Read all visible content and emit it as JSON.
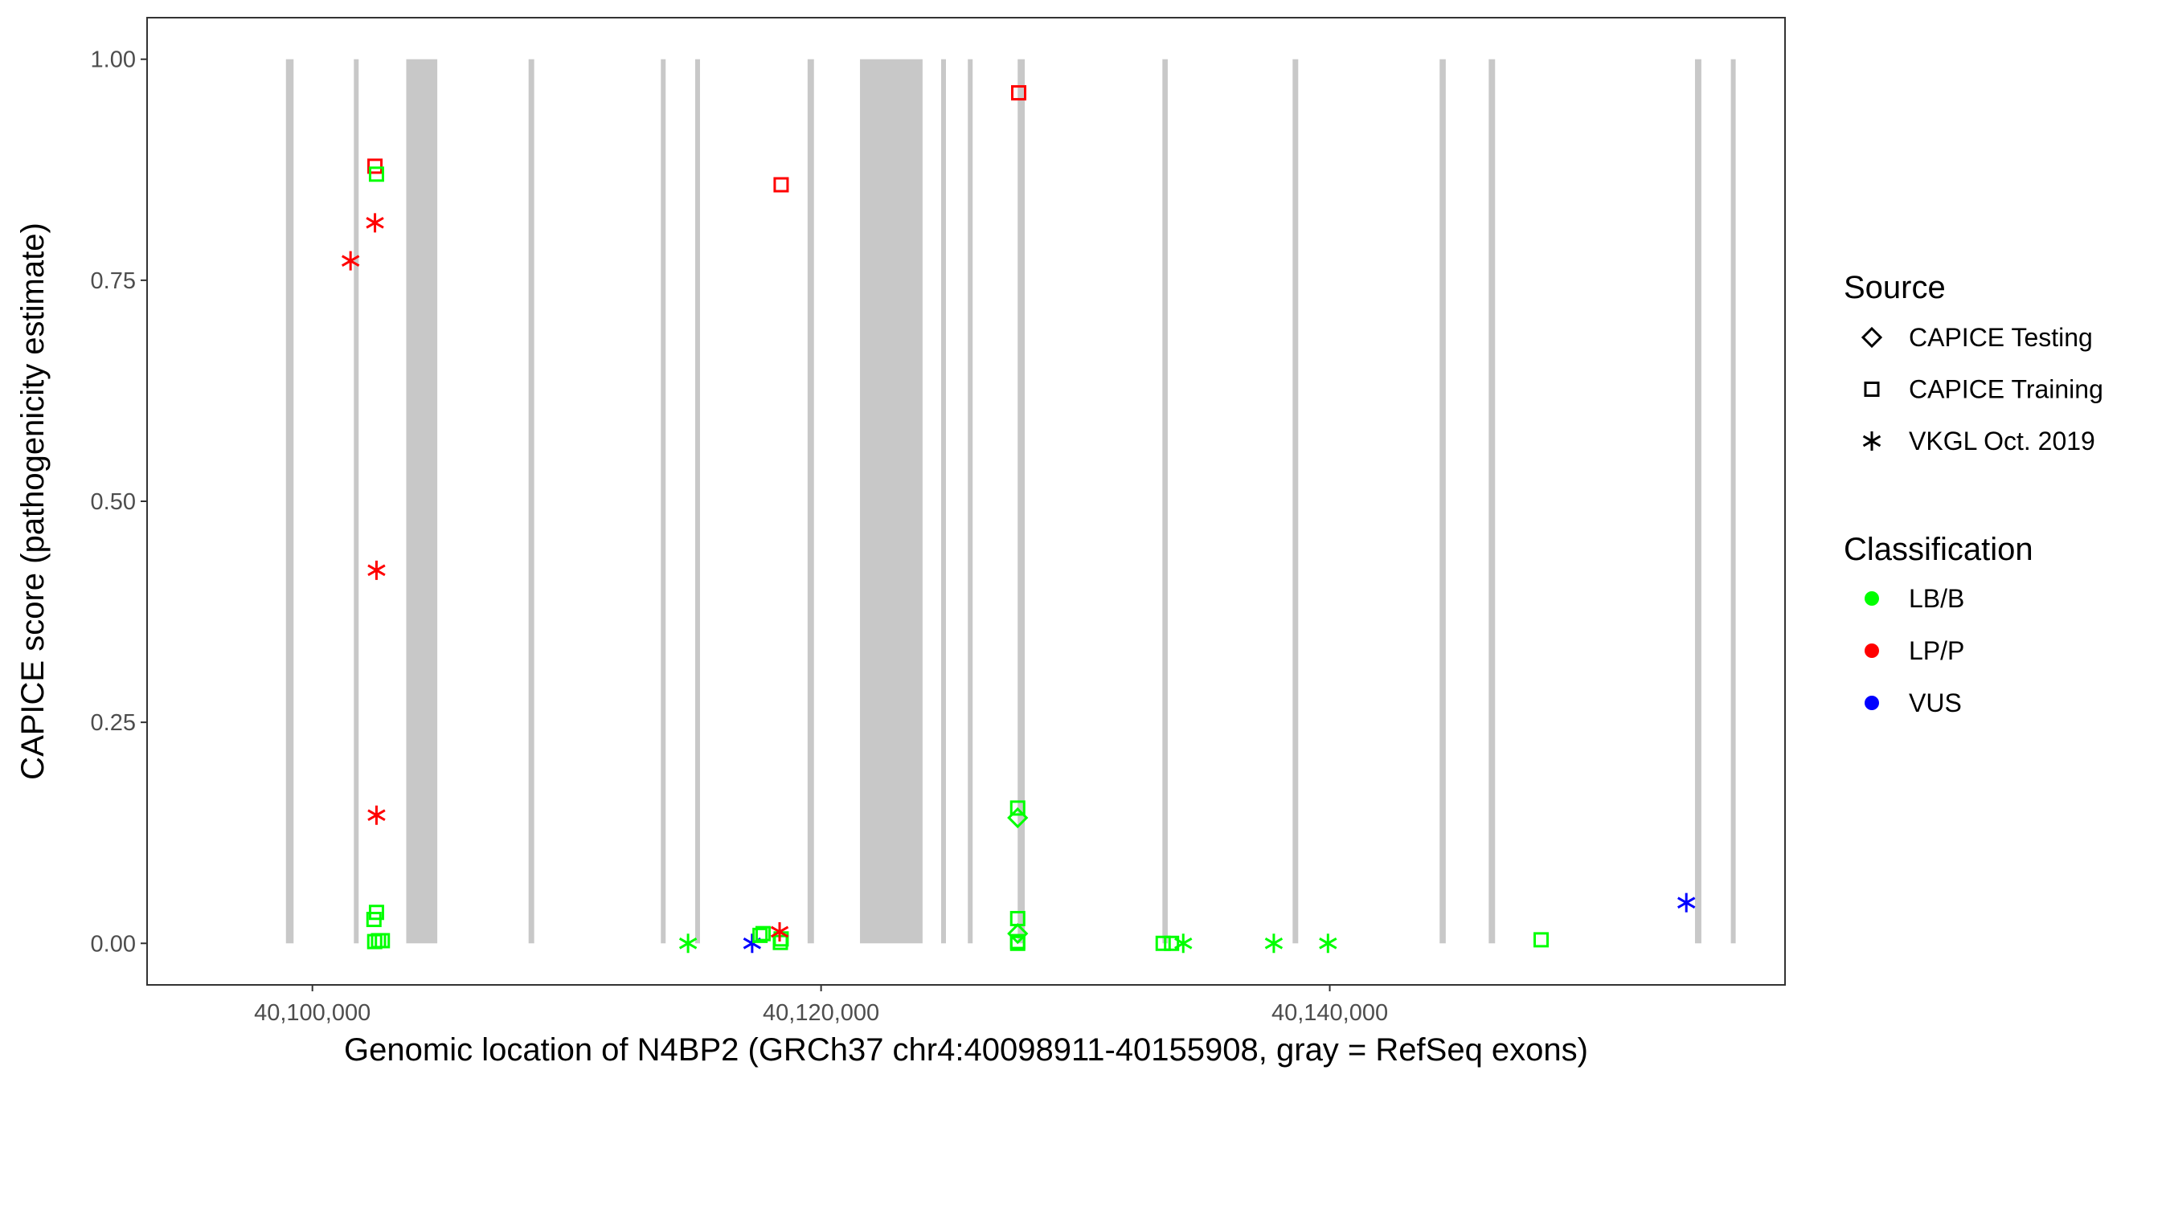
{
  "chart_data": {
    "type": "scatter",
    "title": "",
    "xlabel": "Genomic location of N4BP2 (GRCh37 chr4:40098911-40155908, gray = RefSeq exons)",
    "ylabel": "CAPICE score (pathogenicity estimate)",
    "xlim": [
      40093500,
      40157900
    ],
    "ylim": [
      -0.047,
      1.047
    ],
    "x_ticks": [
      40100000,
      40120000,
      40140000
    ],
    "x_tick_labels": [
      "40,100,000",
      "40,120,000",
      "40,140,000"
    ],
    "y_ticks": [
      0,
      0.25,
      0.5,
      0.75,
      1.0
    ],
    "y_tick_labels": [
      "0.00",
      "0.25",
      "0.50",
      "0.75",
      "1.00"
    ],
    "grid": false,
    "legend_placement": "right",
    "exon_color": "#C8C8C8",
    "exons": [
      [
        40098960,
        40099260
      ],
      [
        40101630,
        40101810
      ],
      [
        40103690,
        40104910
      ],
      [
        40108500,
        40108720
      ],
      [
        40113700,
        40113880
      ],
      [
        40115050,
        40115200
      ],
      [
        40119470,
        40119720
      ],
      [
        40121530,
        40123990
      ],
      [
        40124720,
        40124900
      ],
      [
        40125770,
        40125920
      ],
      [
        40127730,
        40128010
      ],
      [
        40133420,
        40133630
      ],
      [
        40138540,
        40138760
      ],
      [
        40144320,
        40144560
      ],
      [
        40146250,
        40146500
      ],
      [
        40154360,
        40154610
      ],
      [
        40155770,
        40155960
      ]
    ],
    "legends": {
      "source": {
        "title": "Source",
        "entries": [
          {
            "label": "CAPICE Testing",
            "shape": "diamond"
          },
          {
            "label": "CAPICE Training",
            "shape": "square"
          },
          {
            "label": "VKGL Oct. 2019",
            "shape": "asterisk"
          }
        ]
      },
      "classification": {
        "title": "Classification",
        "entries": [
          {
            "label": "LB/B",
            "color": "#00FF00"
          },
          {
            "label": "LP/P",
            "color": "#FF0000"
          },
          {
            "label": "VUS",
            "color": "#0000FF"
          }
        ]
      }
    },
    "points": [
      {
        "x": 40102460,
        "y": 0.879,
        "source": "CAPICE Training",
        "class": "LP/P"
      },
      {
        "x": 40102520,
        "y": 0.87,
        "source": "CAPICE Training",
        "class": "LB/B"
      },
      {
        "x": 40102460,
        "y": 0.815,
        "source": "VKGL Oct. 2019",
        "class": "LP/P"
      },
      {
        "x": 40101500,
        "y": 0.772,
        "source": "VKGL Oct. 2019",
        "class": "LP/P"
      },
      {
        "x": 40102520,
        "y": 0.422,
        "source": "VKGL Oct. 2019",
        "class": "LP/P"
      },
      {
        "x": 40102520,
        "y": 0.145,
        "source": "VKGL Oct. 2019",
        "class": "LP/P"
      },
      {
        "x": 40102520,
        "y": 0.035,
        "source": "CAPICE Training",
        "class": "LB/B"
      },
      {
        "x": 40102420,
        "y": 0.027,
        "source": "CAPICE Training",
        "class": "LB/B"
      },
      {
        "x": 40102450,
        "y": 0.002,
        "source": "CAPICE Training",
        "class": "LB/B"
      },
      {
        "x": 40102600,
        "y": 0.003,
        "source": "CAPICE Training",
        "class": "LB/B"
      },
      {
        "x": 40102750,
        "y": 0.003,
        "source": "CAPICE Training",
        "class": "LB/B"
      },
      {
        "x": 40118430,
        "y": 0.858,
        "source": "CAPICE Training",
        "class": "LP/P"
      },
      {
        "x": 40127770,
        "y": 0.962,
        "source": "CAPICE Training",
        "class": "LP/P"
      },
      {
        "x": 40114770,
        "y": 0.0,
        "source": "VKGL Oct. 2019",
        "class": "LB/B"
      },
      {
        "x": 40117290,
        "y": 0.0,
        "source": "VKGL Oct. 2019",
        "class": "VUS"
      },
      {
        "x": 40117600,
        "y": 0.009,
        "source": "CAPICE Training",
        "class": "LB/B"
      },
      {
        "x": 40117720,
        "y": 0.011,
        "source": "CAPICE Training",
        "class": "LB/B"
      },
      {
        "x": 40118400,
        "y": 0.001,
        "source": "CAPICE Training",
        "class": "LB/B"
      },
      {
        "x": 40118430,
        "y": 0.005,
        "source": "CAPICE Training",
        "class": "LB/B"
      },
      {
        "x": 40118370,
        "y": 0.013,
        "source": "VKGL Oct. 2019",
        "class": "LP/P"
      },
      {
        "x": 40127730,
        "y": 0.153,
        "source": "CAPICE Training",
        "class": "LB/B"
      },
      {
        "x": 40127730,
        "y": 0.142,
        "source": "CAPICE Testing",
        "class": "LB/B"
      },
      {
        "x": 40127730,
        "y": 0.028,
        "source": "CAPICE Training",
        "class": "LB/B"
      },
      {
        "x": 40127730,
        "y": 0.011,
        "source": "CAPICE Testing",
        "class": "LB/B"
      },
      {
        "x": 40127730,
        "y": 0.002,
        "source": "CAPICE Training",
        "class": "LB/B"
      },
      {
        "x": 40127730,
        "y": 0.0,
        "source": "CAPICE Training",
        "class": "LB/B"
      },
      {
        "x": 40133450,
        "y": 0.0,
        "source": "CAPICE Training",
        "class": "LB/B"
      },
      {
        "x": 40133780,
        "y": 0.0,
        "source": "CAPICE Training",
        "class": "LB/B"
      },
      {
        "x": 40134240,
        "y": 0.0,
        "source": "VKGL Oct. 2019",
        "class": "LB/B"
      },
      {
        "x": 40137800,
        "y": 0.0,
        "source": "VKGL Oct. 2019",
        "class": "LB/B"
      },
      {
        "x": 40139930,
        "y": 0.0,
        "source": "VKGL Oct. 2019",
        "class": "LB/B"
      },
      {
        "x": 40148310,
        "y": 0.004,
        "source": "CAPICE Training",
        "class": "LB/B"
      },
      {
        "x": 40154020,
        "y": 0.046,
        "source": "VKGL Oct. 2019",
        "class": "VUS"
      }
    ]
  }
}
